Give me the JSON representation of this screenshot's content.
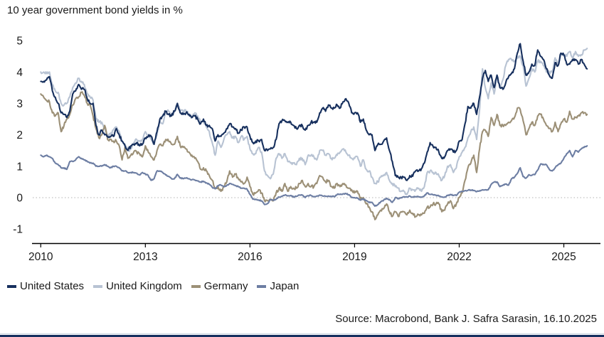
{
  "header": {
    "title": "10 year government bond yields in %"
  },
  "footer": {
    "source": "Source: Macrobond, Bank J. Safra Sarasin, 16.10.2025"
  },
  "colors": {
    "axis": "#000000",
    "text": "#1a1a1a",
    "zero_line": "#b3b3b3",
    "accent_bar": "#16305f"
  },
  "chart_data": {
    "type": "line",
    "title": "10 year government bond yields in %",
    "xlabel": "",
    "ylabel": "",
    "x_unit": "year",
    "x_start": 2010.0,
    "points_per_year": 12,
    "x_ticks": [
      2010,
      2013,
      2016,
      2019,
      2022,
      2025
    ],
    "y_ticks": [
      -1,
      0,
      1,
      2,
      3,
      4,
      5
    ],
    "xlim": [
      2009.77,
      2026.05
    ],
    "ylim": [
      -1.45,
      5.5
    ],
    "grid": false,
    "zero_reference_line": "dotted",
    "legend_position": "bottom-left",
    "series": [
      {
        "name": "United States",
        "color": "#17305e",
        "values": [
          3.7,
          3.7,
          3.75,
          3.85,
          3.4,
          3.2,
          3.0,
          2.7,
          2.65,
          2.55,
          2.75,
          3.3,
          3.4,
          3.6,
          3.45,
          3.45,
          3.15,
          3.0,
          3.0,
          2.3,
          2.0,
          2.15,
          2.0,
          1.95,
          1.95,
          1.95,
          2.2,
          2.0,
          1.8,
          1.65,
          1.5,
          1.65,
          1.7,
          1.75,
          1.65,
          1.7,
          1.9,
          1.95,
          1.95,
          1.7,
          2.1,
          2.5,
          2.6,
          2.75,
          2.65,
          2.6,
          2.75,
          3.0,
          2.7,
          2.65,
          2.7,
          2.65,
          2.55,
          2.6,
          2.5,
          2.35,
          2.5,
          2.3,
          2.3,
          2.2,
          1.8,
          2.0,
          1.95,
          2.05,
          2.2,
          2.35,
          2.25,
          2.2,
          2.05,
          2.15,
          2.25,
          2.25,
          1.95,
          1.75,
          1.8,
          1.8,
          1.85,
          1.5,
          1.5,
          1.55,
          1.6,
          1.85,
          2.35,
          2.45,
          2.45,
          2.4,
          2.4,
          2.3,
          2.2,
          2.3,
          2.3,
          2.15,
          2.3,
          2.4,
          2.4,
          2.4,
          2.7,
          2.85,
          2.75,
          2.95,
          2.85,
          2.85,
          2.95,
          2.85,
          3.05,
          3.15,
          3.0,
          2.7,
          2.7,
          2.7,
          2.4,
          2.5,
          2.15,
          2.0,
          2.0,
          1.5,
          1.7,
          1.7,
          1.8,
          1.9,
          1.5,
          1.15,
          0.7,
          0.65,
          0.65,
          0.65,
          0.55,
          0.7,
          0.68,
          0.85,
          0.85,
          0.92,
          1.1,
          1.45,
          1.75,
          1.63,
          1.6,
          1.45,
          1.25,
          1.3,
          1.5,
          1.55,
          1.45,
          1.5,
          1.8,
          1.85,
          2.35,
          2.9,
          2.85,
          3.0,
          2.65,
          3.2,
          3.8,
          4.05,
          3.7,
          3.9,
          3.5,
          3.9,
          3.5,
          3.45,
          3.65,
          3.85,
          3.95,
          4.1,
          4.6,
          4.9,
          4.35,
          3.9,
          4.0,
          4.25,
          4.2,
          4.7,
          4.5,
          4.4,
          4.1,
          3.9,
          3.8,
          4.3,
          4.2,
          4.6,
          4.55,
          4.25,
          4.25,
          4.4,
          4.4,
          4.25,
          4.4,
          4.25,
          4.1
        ]
      },
      {
        "name": "United Kingdom",
        "color": "#b8c3d3",
        "values": [
          4.0,
          4.0,
          3.95,
          4.0,
          3.6,
          3.4,
          3.35,
          3.0,
          2.95,
          3.0,
          3.2,
          3.5,
          3.65,
          3.8,
          3.7,
          3.6,
          3.3,
          3.2,
          3.1,
          2.5,
          2.4,
          2.4,
          2.2,
          2.0,
          2.0,
          2.15,
          2.25,
          2.1,
          1.8,
          1.7,
          1.5,
          1.55,
          1.75,
          1.85,
          1.8,
          1.85,
          2.1,
          2.0,
          1.85,
          1.7,
          2.0,
          2.45,
          2.35,
          2.75,
          2.75,
          2.6,
          2.75,
          3.0,
          2.75,
          2.75,
          2.75,
          2.65,
          2.55,
          2.7,
          2.6,
          2.4,
          2.45,
          2.25,
          2.1,
          1.75,
          1.35,
          1.8,
          1.6,
          1.85,
          2.0,
          2.1,
          1.9,
          1.95,
          1.75,
          1.95,
          1.85,
          1.95,
          1.55,
          1.4,
          1.4,
          1.6,
          1.45,
          0.85,
          0.7,
          0.6,
          0.75,
          1.25,
          1.4,
          1.25,
          1.4,
          1.15,
          1.1,
          1.1,
          1.05,
          1.25,
          1.25,
          1.05,
          1.35,
          1.35,
          1.3,
          1.2,
          1.5,
          1.5,
          1.35,
          1.4,
          1.25,
          1.25,
          1.35,
          1.45,
          1.55,
          1.45,
          1.35,
          1.25,
          1.25,
          1.3,
          1.0,
          1.2,
          0.9,
          0.85,
          0.65,
          0.45,
          0.5,
          0.65,
          0.7,
          0.8,
          0.55,
          0.45,
          0.35,
          0.3,
          0.2,
          0.2,
          0.1,
          0.3,
          0.25,
          0.25,
          0.3,
          0.2,
          0.35,
          0.8,
          0.85,
          0.8,
          0.8,
          0.7,
          0.55,
          0.7,
          1.0,
          1.05,
          0.8,
          0.95,
          1.3,
          1.45,
          1.6,
          1.9,
          2.1,
          2.25,
          1.85,
          2.8,
          4.1,
          3.5,
          3.15,
          3.65,
          3.3,
          3.85,
          3.5,
          3.75,
          4.2,
          4.4,
          4.4,
          4.35,
          4.45,
          4.5,
          4.2,
          3.55,
          3.8,
          4.1,
          4.0,
          4.35,
          4.3,
          4.2,
          4.0,
          4.0,
          4.0,
          4.45,
          4.25,
          4.55,
          4.55,
          4.5,
          4.65,
          4.45,
          4.65,
          4.5,
          4.55,
          4.7,
          4.75
        ]
      },
      {
        "name": "Germany",
        "color": "#9c9077",
        "values": [
          3.3,
          3.2,
          3.1,
          3.05,
          2.7,
          2.6,
          2.7,
          2.1,
          2.3,
          2.5,
          2.65,
          2.95,
          3.15,
          3.2,
          3.35,
          3.25,
          3.0,
          2.95,
          2.6,
          2.2,
          1.9,
          2.0,
          2.3,
          1.85,
          1.85,
          1.8,
          1.8,
          1.65,
          1.2,
          1.6,
          1.25,
          1.35,
          1.45,
          1.45,
          1.4,
          1.3,
          1.65,
          1.45,
          1.3,
          1.2,
          1.5,
          1.7,
          1.65,
          1.85,
          1.8,
          1.7,
          1.7,
          1.95,
          1.65,
          1.6,
          1.55,
          1.45,
          1.35,
          1.25,
          1.15,
          0.9,
          0.95,
          0.85,
          0.7,
          0.55,
          0.3,
          0.35,
          0.2,
          0.35,
          0.5,
          0.85,
          0.65,
          0.75,
          0.6,
          0.5,
          0.45,
          0.65,
          0.35,
          0.1,
          0.15,
          0.25,
          0.15,
          -0.1,
          -0.1,
          -0.05,
          -0.1,
          0.15,
          0.3,
          0.2,
          0.45,
          0.2,
          0.35,
          0.3,
          0.3,
          0.45,
          0.55,
          0.35,
          0.45,
          0.35,
          0.35,
          0.45,
          0.7,
          0.65,
          0.5,
          0.55,
          0.35,
          0.3,
          0.45,
          0.35,
          0.45,
          0.4,
          0.3,
          0.25,
          0.15,
          0.2,
          -0.05,
          0.0,
          -0.2,
          -0.3,
          -0.45,
          -0.7,
          -0.55,
          -0.4,
          -0.35,
          -0.2,
          -0.45,
          -0.6,
          -0.45,
          -0.6,
          -0.45,
          -0.45,
          -0.55,
          -0.4,
          -0.5,
          -0.6,
          -0.55,
          -0.55,
          -0.5,
          -0.3,
          -0.3,
          -0.2,
          -0.2,
          -0.2,
          -0.45,
          -0.4,
          -0.2,
          -0.1,
          -0.35,
          -0.2,
          0.0,
          0.15,
          0.55,
          0.95,
          1.1,
          1.35,
          0.8,
          1.55,
          2.1,
          2.15,
          1.95,
          2.55,
          2.3,
          2.65,
          2.3,
          2.3,
          2.3,
          2.4,
          2.45,
          2.55,
          2.85,
          2.8,
          2.45,
          2.0,
          2.2,
          2.4,
          2.3,
          2.6,
          2.65,
          2.5,
          2.3,
          2.2,
          2.1,
          2.4,
          2.1,
          2.35,
          2.5,
          2.4,
          2.75,
          2.5,
          2.55,
          2.6,
          2.7,
          2.7,
          2.65
        ]
      },
      {
        "name": "Japan",
        "color": "#6d7ea3",
        "values": [
          1.35,
          1.3,
          1.35,
          1.3,
          1.25,
          1.1,
          1.05,
          0.95,
          0.95,
          0.9,
          1.15,
          1.15,
          1.2,
          1.3,
          1.25,
          1.2,
          1.15,
          1.1,
          1.1,
          1.0,
          1.0,
          1.0,
          1.05,
          1.0,
          0.95,
          1.0,
          1.0,
          0.95,
          0.85,
          0.85,
          0.8,
          0.8,
          0.8,
          0.78,
          0.72,
          0.8,
          0.75,
          0.7,
          0.55,
          0.6,
          0.85,
          0.85,
          0.8,
          0.72,
          0.68,
          0.6,
          0.6,
          0.74,
          0.62,
          0.6,
          0.62,
          0.6,
          0.57,
          0.56,
          0.53,
          0.5,
          0.52,
          0.47,
          0.42,
          0.33,
          0.28,
          0.38,
          0.4,
          0.34,
          0.39,
          0.45,
          0.42,
          0.38,
          0.35,
          0.3,
          0.3,
          0.27,
          0.1,
          -0.05,
          -0.05,
          -0.08,
          -0.1,
          -0.22,
          -0.19,
          -0.07,
          -0.08,
          -0.05,
          0.02,
          0.04,
          0.08,
          0.06,
          0.07,
          0.02,
          0.04,
          0.08,
          0.08,
          0.0,
          0.06,
          0.07,
          0.03,
          0.05,
          0.08,
          0.05,
          0.04,
          0.05,
          0.04,
          0.03,
          0.1,
          0.1,
          0.12,
          0.13,
          0.09,
          0.0,
          0.0,
          -0.02,
          -0.08,
          -0.04,
          -0.09,
          -0.16,
          -0.15,
          -0.27,
          -0.22,
          -0.13,
          -0.08,
          -0.02,
          -0.06,
          -0.15,
          0.0,
          -0.03,
          0.0,
          0.03,
          0.02,
          0.05,
          0.02,
          0.03,
          0.03,
          0.02,
          0.05,
          0.15,
          0.1,
          0.09,
          0.08,
          0.05,
          0.02,
          0.02,
          0.07,
          0.1,
          0.07,
          0.07,
          0.17,
          0.2,
          0.22,
          0.23,
          0.24,
          0.23,
          0.19,
          0.22,
          0.25,
          0.25,
          0.25,
          0.42,
          0.49,
          0.5,
          0.35,
          0.39,
          0.43,
          0.4,
          0.6,
          0.65,
          0.77,
          0.95,
          0.67,
          0.62,
          0.73,
          0.71,
          0.73,
          0.88,
          1.07,
          1.06,
          1.05,
          0.9,
          0.85,
          0.95,
          1.05,
          1.1,
          1.25,
          1.4,
          1.5,
          1.3,
          1.5,
          1.45,
          1.55,
          1.6,
          1.65
        ]
      }
    ]
  }
}
